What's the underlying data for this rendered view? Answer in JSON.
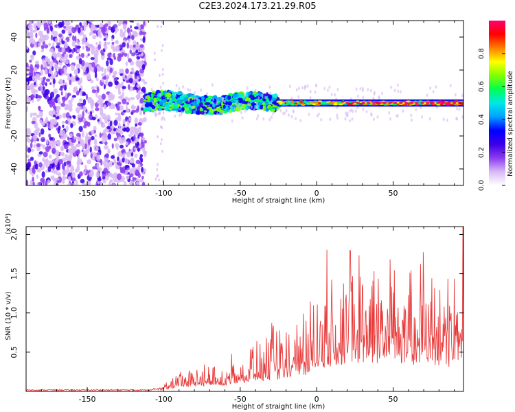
{
  "title": "C2E3.2024.173.21.29.R05",
  "colors": {
    "line": "#e83a3a",
    "colormap": [
      "#ffffff",
      "#d9b8f5",
      "#8b3cf0",
      "#3a00e8",
      "#0000ff",
      "#00a0ff",
      "#00e8e8",
      "#00ff50",
      "#80ff00",
      "#ffff00",
      "#ff8000",
      "#ff0000",
      "#ff006e"
    ]
  },
  "colorbar": {
    "label": "Normalized spectral amplitude",
    "ticks": [
      "0.0",
      "0.2",
      "0.4",
      "0.6",
      "0.8"
    ],
    "range": [
      0,
      1
    ]
  },
  "chart_data": [
    {
      "type": "heatmap",
      "title": "C2E3.2024.173.21.29.R05",
      "xlabel": "Height of straight line (km)",
      "ylabel": "Frequency (Hz)",
      "xlim": [
        -190,
        96
      ],
      "ylim": [
        -50,
        50
      ],
      "xticks": [
        "-150",
        "-100",
        "-50",
        "0",
        "50"
      ],
      "yticks": [
        "-40",
        "-20",
        "0",
        "20",
        "40"
      ],
      "colorbar_label": "Normalized spectral amplitude",
      "description": "noise region",
      "regions": [
        {
          "x": [
            -190,
            -112
          ],
          "y": [
            -50,
            50
          ],
          "level": 0.15,
          "label": "noise"
        },
        {
          "x": [
            -112,
            -25
          ],
          "y": [
            -8,
            6
          ],
          "level": 0.55,
          "label": "signal"
        },
        {
          "x": [
            -25,
            96
          ],
          "y": [
            -2,
            2
          ],
          "level": 0.9,
          "label": "signal"
        }
      ]
    },
    {
      "type": "line",
      "xlabel": "Height of straight line (km)",
      "ylabel": "SNR (10 * v/v)",
      "yscale_label": "(x10⁴)",
      "xlim": [
        -190,
        96
      ],
      "ylim": [
        0,
        2.1
      ],
      "xticks": [
        "-150",
        "-100",
        "-50",
        "0",
        "50"
      ],
      "yticks": [
        "0.5",
        "1.0",
        "1.5",
        "2.0"
      ],
      "series": [
        {
          "x": [
            -190,
            -110,
            -100,
            -90,
            -80,
            -70,
            -60,
            -50,
            -40,
            -30,
            -20,
            -10,
            0,
            10,
            20,
            30,
            40,
            50,
            60,
            70,
            80,
            90,
            96
          ],
          "values": [
            0.01,
            0.01,
            0.05,
            0.2,
            0.2,
            0.25,
            0.25,
            0.4,
            0.45,
            0.55,
            0.55,
            0.75,
            1.0,
            1.2,
            1.3,
            1.4,
            1.35,
            1.5,
            1.2,
            1.2,
            1.3,
            1.1,
            1.7
          ]
        }
      ]
    }
  ]
}
